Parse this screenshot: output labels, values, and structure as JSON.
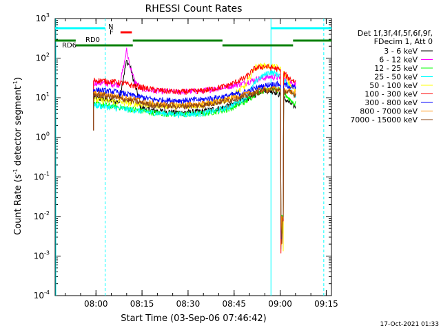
{
  "chart_data": {
    "type": "line",
    "title": "RHESSI Count Rates",
    "xlabel": "Start Time (03-Sep-06 07:46:42)",
    "ylabel_parts": [
      "Count Rate (s",
      "-1",
      " detector segment",
      "-1",
      ")"
    ],
    "y_scale": "log",
    "ylim": [
      0.0001,
      1000
    ],
    "y_ticks": [
      {
        "value": 0.0001,
        "base": "10",
        "exp": "-4"
      },
      {
        "value": 0.001,
        "base": "10",
        "exp": "-3"
      },
      {
        "value": 0.01,
        "base": "10",
        "exp": "-2"
      },
      {
        "value": 0.1,
        "base": "10",
        "exp": "-1"
      },
      {
        "value": 1,
        "base": "10",
        "exp": "0"
      },
      {
        "value": 10,
        "base": "10",
        "exp": "1"
      },
      {
        "value": 100,
        "base": "10",
        "exp": "2"
      },
      {
        "value": 1000,
        "base": "10",
        "exp": "3"
      }
    ],
    "x_unit": "minutes after 07:46:42",
    "xlim": [
      0,
      90
    ],
    "x_ticks": [
      {
        "value": 13.3,
        "label": "08:00"
      },
      {
        "value": 28.3,
        "label": "08:15"
      },
      {
        "value": 43.3,
        "label": "08:30"
      },
      {
        "value": 58.3,
        "label": "08:45"
      },
      {
        "value": 73.3,
        "label": "09:00"
      },
      {
        "value": 88.3,
        "label": "09:15"
      }
    ],
    "legend_header": [
      "Det 1f,3f,4f,5f,6f,9f,",
      "FDecim 1, Att 0"
    ],
    "legend_position": "right",
    "series": [
      {
        "name": "3 - 6 keV",
        "color": "#000000",
        "baseline": 10,
        "curve": [
          [
            12.5,
            10
          ],
          [
            20,
            8
          ],
          [
            26,
            6
          ],
          [
            32,
            4.8
          ],
          [
            40,
            4.2
          ],
          [
            48,
            4.5
          ],
          [
            56,
            6
          ],
          [
            62,
            9
          ],
          [
            68,
            16
          ],
          [
            72,
            14
          ],
          [
            75,
            9
          ],
          [
            78,
            6
          ]
        ],
        "spike": [
          [
            21,
            10
          ],
          [
            22.3,
            35
          ],
          [
            23.3,
            85
          ],
          [
            24.5,
            60
          ],
          [
            26,
            20
          ],
          [
            27.5,
            9
          ]
        ]
      },
      {
        "name": "6 - 12 keV",
        "color": "#ff00ff",
        "curve": [
          [
            12.5,
            24
          ],
          [
            20,
            22
          ],
          [
            26,
            18
          ],
          [
            32,
            15
          ],
          [
            40,
            14
          ],
          [
            48,
            15
          ],
          [
            56,
            19
          ],
          [
            62,
            24
          ],
          [
            66,
            30
          ],
          [
            70,
            34
          ],
          [
            74,
            32
          ],
          [
            76,
            26
          ],
          [
            78,
            22
          ]
        ],
        "spike": [
          [
            21,
            22
          ],
          [
            22.3,
            60
          ],
          [
            23.3,
            160
          ],
          [
            24.5,
            60
          ],
          [
            26,
            25
          ],
          [
            27.5,
            20
          ]
        ]
      },
      {
        "name": "12 - 25 keV",
        "color": "#00ff00",
        "curve": [
          [
            12.5,
            7
          ],
          [
            20,
            6
          ],
          [
            26,
            5
          ],
          [
            32,
            4.2
          ],
          [
            40,
            3.8
          ],
          [
            48,
            4
          ],
          [
            56,
            5
          ],
          [
            62,
            8
          ],
          [
            66,
            14
          ],
          [
            70,
            18
          ],
          [
            74,
            15
          ],
          [
            76,
            10
          ],
          [
            78,
            7
          ]
        ]
      },
      {
        "name": "25 - 50 keV",
        "color": "#00ffff",
        "curve": [
          [
            12.5,
            6.5
          ],
          [
            20,
            5.5
          ],
          [
            26,
            4.8
          ],
          [
            32,
            4.2
          ],
          [
            40,
            3.8
          ],
          [
            48,
            4
          ],
          [
            56,
            5.5
          ],
          [
            62,
            10
          ],
          [
            66,
            30
          ],
          [
            70,
            45
          ],
          [
            74,
            35
          ],
          [
            76,
            20
          ],
          [
            78,
            12
          ]
        ]
      },
      {
        "name": "50 - 100 keV",
        "color": "#ffff00",
        "curve": [
          [
            12.5,
            9
          ],
          [
            20,
            8
          ],
          [
            26,
            7
          ],
          [
            32,
            6.5
          ],
          [
            40,
            6
          ],
          [
            48,
            6.5
          ],
          [
            56,
            9
          ],
          [
            62,
            20
          ],
          [
            65,
            60
          ],
          [
            68,
            65
          ],
          [
            72,
            60
          ],
          [
            74,
            50
          ],
          [
            76,
            25
          ],
          [
            78,
            15
          ]
        ]
      },
      {
        "name": "100 - 300 keV",
        "color": "#ff0000",
        "curve": [
          [
            12.5,
            28
          ],
          [
            20,
            25
          ],
          [
            26,
            20
          ],
          [
            32,
            16
          ],
          [
            40,
            14
          ],
          [
            48,
            15
          ],
          [
            56,
            20
          ],
          [
            62,
            32
          ],
          [
            65,
            55
          ],
          [
            68,
            62
          ],
          [
            72,
            55
          ],
          [
            74,
            45
          ],
          [
            76,
            32
          ],
          [
            78,
            26
          ]
        ]
      },
      {
        "name": "300 - 800 keV",
        "color": "#0000ff",
        "curve": [
          [
            12.5,
            16
          ],
          [
            20,
            14
          ],
          [
            26,
            11
          ],
          [
            32,
            9
          ],
          [
            40,
            8.5
          ],
          [
            48,
            9
          ],
          [
            56,
            11
          ],
          [
            62,
            14
          ],
          [
            66,
            18
          ],
          [
            70,
            22
          ],
          [
            74,
            22
          ],
          [
            76,
            20
          ],
          [
            78,
            18
          ]
        ]
      },
      {
        "name": "800 - 7000 keV",
        "color": "#ff8c00",
        "curve": [
          [
            12.5,
            13
          ],
          [
            20,
            11
          ],
          [
            26,
            9
          ],
          [
            32,
            7
          ],
          [
            40,
            6.5
          ],
          [
            48,
            7
          ],
          [
            56,
            9
          ],
          [
            62,
            12
          ],
          [
            66,
            15
          ],
          [
            70,
            17
          ],
          [
            74,
            16
          ],
          [
            76,
            15
          ],
          [
            78,
            13
          ]
        ]
      },
      {
        "name": "7000 - 15000 keV",
        "color": "#8b4513",
        "curve": [
          [
            12.5,
            12
          ],
          [
            20,
            10
          ],
          [
            26,
            8
          ],
          [
            32,
            6.5
          ],
          [
            40,
            6
          ],
          [
            48,
            6.5
          ],
          [
            56,
            8.5
          ],
          [
            62,
            11
          ],
          [
            66,
            14
          ],
          [
            70,
            16
          ],
          [
            74,
            15
          ],
          [
            76,
            14
          ],
          [
            78,
            12
          ]
        ]
      }
    ],
    "series_start": 12.5,
    "series_end": 78.5,
    "series_drop_at": 73.5,
    "series_drop_to": 0.001,
    "night_intervals": {
      "color": "#00ffff",
      "label": "N",
      "segments": [
        [
          0,
          16.3
        ],
        [
          70.3,
          90
        ]
      ]
    },
    "dashed_markers": {
      "color": "#00ffff",
      "x": [
        16.3,
        87.5
      ]
    },
    "solid_markers": {
      "color": "#00ffff",
      "x": [
        70.3
      ]
    },
    "flare_flag": {
      "color": "#ff0000",
      "label": "F",
      "segments": [
        [
          21.3,
          25.0
        ]
      ]
    },
    "rd0_flag": {
      "color": "#008000",
      "label": "RD0",
      "segments": [
        [
          0,
          6.7
        ],
        [
          25.3,
          54.5
        ],
        [
          77.5,
          90
        ]
      ]
    },
    "rd6_flag": {
      "color": "#008000",
      "label": "RD6",
      "segments": [
        [
          6.7,
          25.3
        ],
        [
          54.5,
          77.5
        ]
      ]
    }
  },
  "footer_timestamp": "17-Oct-2021 01:33"
}
